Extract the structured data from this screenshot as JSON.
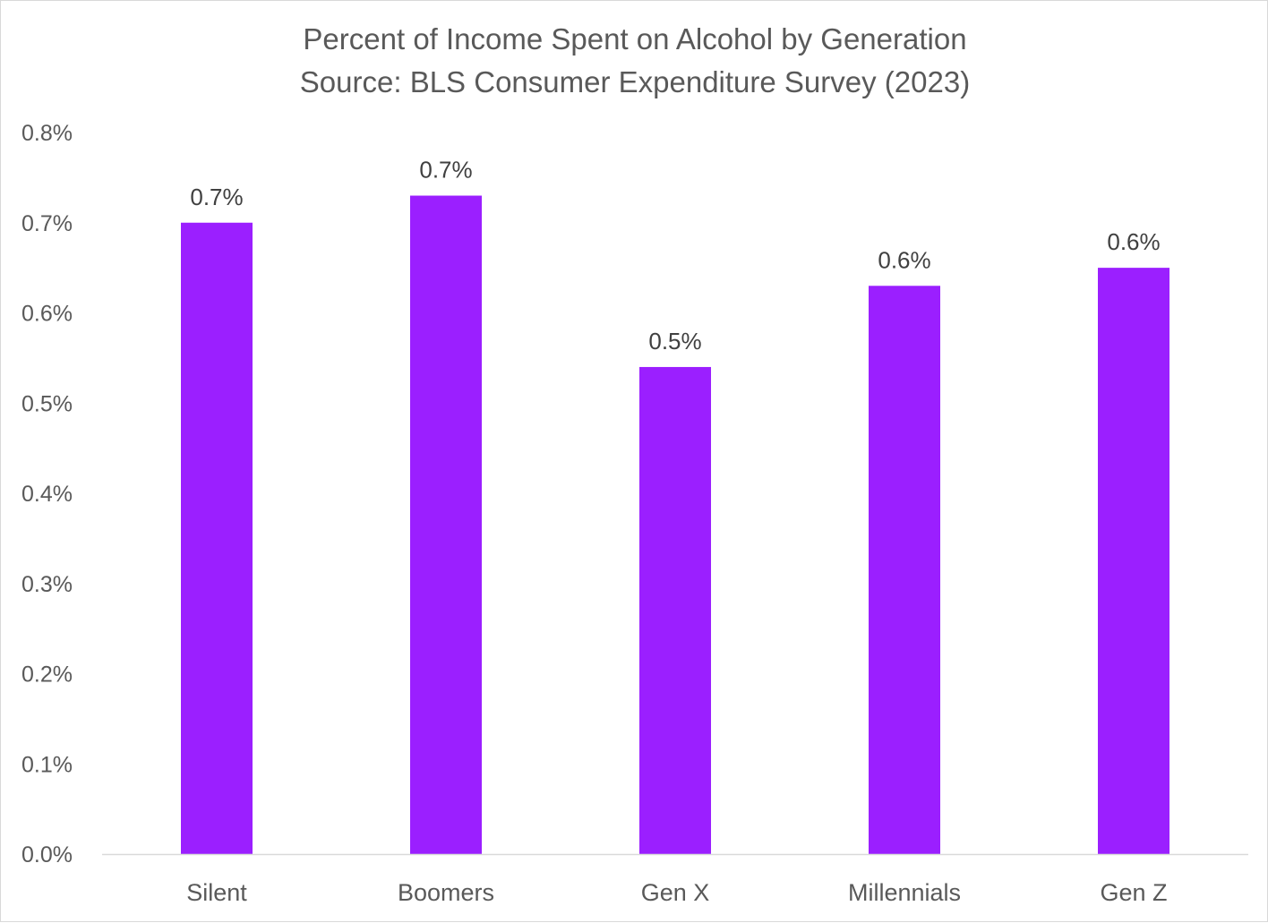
{
  "chart_data": {
    "type": "bar",
    "title": "Percent of Income Spent on Alcohol by Generation",
    "subtitle": "Source: BLS Consumer Expenditure Survey (2023)",
    "xlabel": "",
    "ylabel": "",
    "categories": [
      "Silent",
      "Boomers",
      "Gen X",
      "Millennials",
      "Gen Z"
    ],
    "values": [
      0.7,
      0.73,
      0.54,
      0.63,
      0.65
    ],
    "data_labels": [
      "0.7%",
      "0.7%",
      "0.5%",
      "0.6%",
      "0.6%"
    ],
    "ylim": [
      0,
      0.8
    ],
    "yticks": [
      0,
      0.1,
      0.2,
      0.3,
      0.4,
      0.5,
      0.6,
      0.7,
      0.8
    ],
    "ytick_labels": [
      "0.0%",
      "0.1%",
      "0.2%",
      "0.3%",
      "0.4%",
      "0.5%",
      "0.6%",
      "0.7%",
      "0.8%"
    ],
    "unit": "%",
    "grid": false,
    "legend": "none",
    "bar_color": "#9B1FFF"
  }
}
